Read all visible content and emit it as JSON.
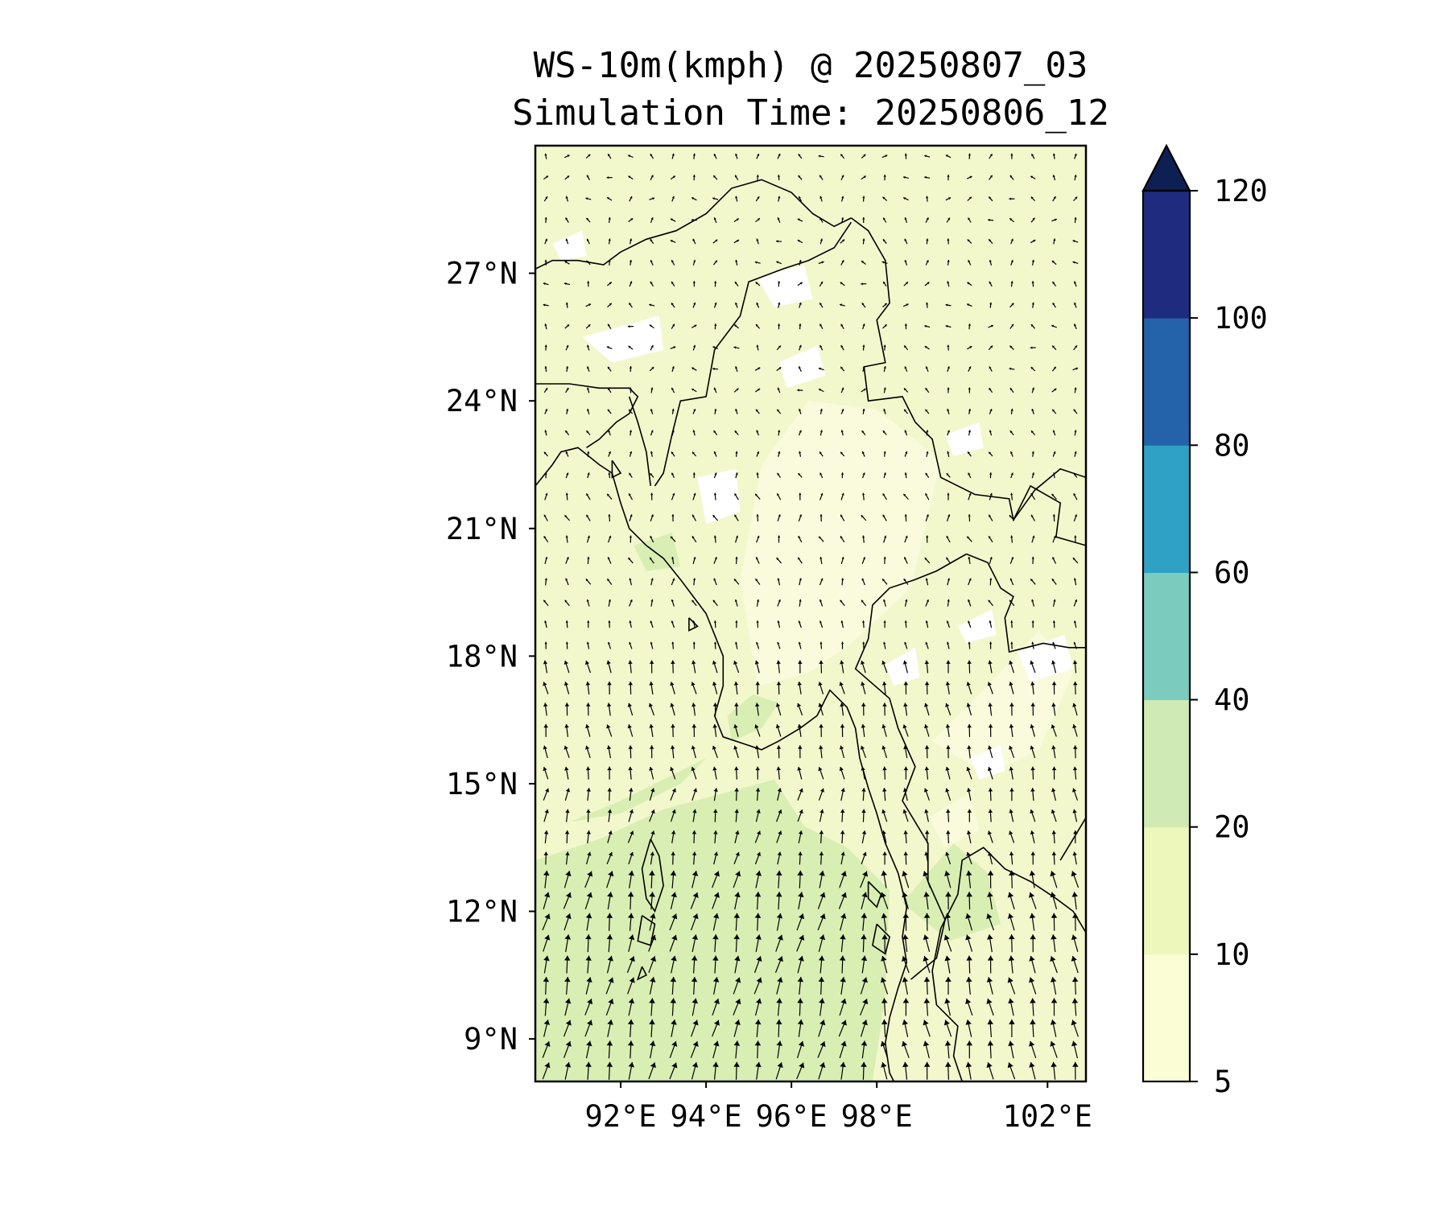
{
  "title": {
    "line1": "WS-10m(kmph) @ 20250807_03",
    "line2": "Simulation Time: 20250806_12"
  },
  "map": {
    "lon_range": [
      90.0,
      102.9
    ],
    "lat_range": [
      8.0,
      30.0
    ],
    "x_ticks": [
      {
        "value": 92,
        "label": "92°E"
      },
      {
        "value": 94,
        "label": "94°E"
      },
      {
        "value": 96,
        "label": "96°E"
      },
      {
        "value": 98,
        "label": "98°E"
      },
      {
        "value": 102,
        "label": "102°E"
      }
    ],
    "y_ticks": [
      {
        "value": 27,
        "label": "27°N"
      },
      {
        "value": 24,
        "label": "24°N"
      },
      {
        "value": 21,
        "label": "21°N"
      },
      {
        "value": 18,
        "label": "18°N"
      },
      {
        "value": 15,
        "label": "15°N"
      },
      {
        "value": 12,
        "label": "12°N"
      },
      {
        "value": 9,
        "label": "9°N"
      }
    ],
    "field_colors": {
      "light": "#f2f8cc",
      "land_pale": "#f9fbdc",
      "calm": "#ffffff",
      "moderate": "#d9eeb3"
    },
    "coastline_color": "#000000",
    "arrow_color": "#000000"
  },
  "colorbar": {
    "levels": [
      5,
      10,
      20,
      40,
      60,
      80,
      100,
      120
    ],
    "tick_labels": [
      "5",
      "10",
      "20",
      "40",
      "60",
      "80",
      "100",
      "120"
    ],
    "colors": [
      "#fbfdd5",
      "#eef7bb",
      "#cfeab3",
      "#7bcbbf",
      "#2fa1c5",
      "#2463aa",
      "#1e2c7f"
    ],
    "extend_color": "#0e1f54",
    "extend": "max"
  }
}
